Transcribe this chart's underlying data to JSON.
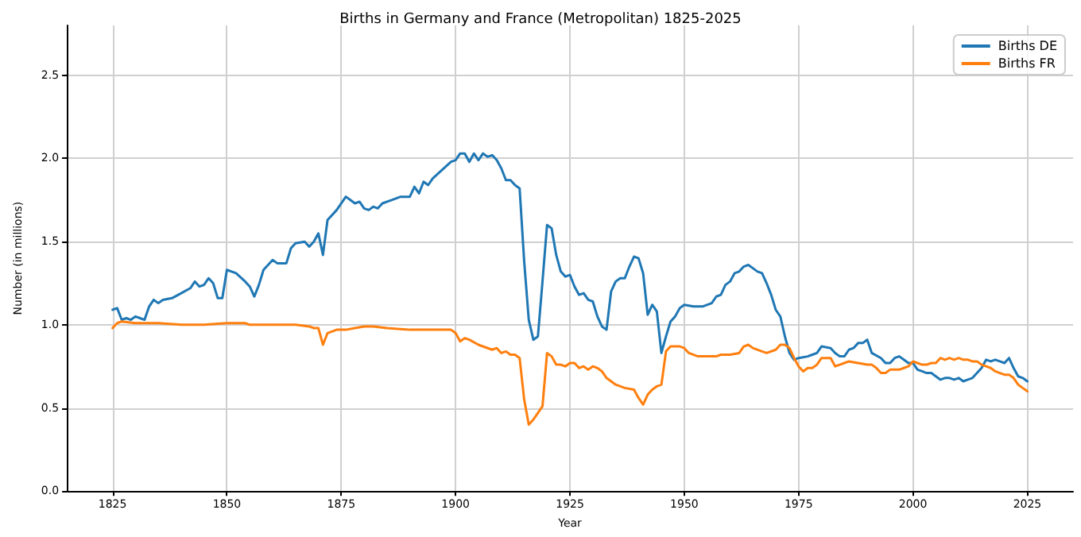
{
  "chart_data": {
    "type": "line",
    "title": "Births in Germany and France (Metropolitan) 1825-2025",
    "xlabel": "Year",
    "ylabel": "Number (in millions)",
    "xlim": [
      1815,
      2035
    ],
    "xticks": [
      1825,
      1850,
      1875,
      1900,
      1925,
      1950,
      1975,
      2000,
      2025
    ],
    "ylim": [
      0,
      2.8
    ],
    "yticks": [
      {
        "value": 0,
        "label": "0.0"
      },
      0.5,
      {
        "value": 1,
        "label": "1.0"
      },
      1.5,
      {
        "value": 2,
        "label": "2.0"
      },
      2.5
    ],
    "grid": true,
    "legend": "top right",
    "marker": "none",
    "line_style": "solid",
    "series": [
      {
        "name": "Births DE",
        "color": "#1f77b4",
        "x": [
          1825,
          1826,
          1827,
          1828,
          1829,
          1830,
          1831,
          1832,
          1833,
          1834,
          1835,
          1836,
          1838,
          1840,
          1842,
          1843,
          1844,
          1845,
          1846,
          1847,
          1848,
          1849,
          1850,
          1852,
          1854,
          1855,
          1856,
          1857,
          1858,
          1860,
          1861,
          1863,
          1864,
          1865,
          1867,
          1868,
          1869,
          1870,
          1871,
          1872,
          1874,
          1876,
          1877,
          1878,
          1879,
          1880,
          1881,
          1882,
          1883,
          1884,
          1886,
          1888,
          1890,
          1891,
          1892,
          1893,
          1894,
          1895,
          1897,
          1899,
          1900,
          1901,
          1902,
          1903,
          1904,
          1905,
          1906,
          1907,
          1908,
          1909,
          1910,
          1911,
          1912,
          1913,
          1914,
          1915,
          1916,
          1917,
          1918,
          1919,
          1920,
          1921,
          1922,
          1923,
          1924,
          1925,
          1926,
          1927,
          1928,
          1929,
          1930,
          1931,
          1932,
          1933,
          1934,
          1935,
          1936,
          1937,
          1938,
          1939,
          1940,
          1941,
          1942,
          1943,
          1944,
          1945,
          1946,
          1947,
          1948,
          1949,
          1950,
          1952,
          1954,
          1956,
          1957,
          1958,
          1959,
          1960,
          1961,
          1962,
          1963,
          1964,
          1965,
          1966,
          1967,
          1968,
          1969,
          1970,
          1971,
          1972,
          1973,
          1974,
          1975,
          1977,
          1978,
          1979,
          1980,
          1982,
          1983,
          1984,
          1985,
          1986,
          1987,
          1988,
          1989,
          1990,
          1991,
          1993,
          1994,
          1995,
          1996,
          1997,
          1998,
          1999,
          2000,
          2001,
          2002,
          2003,
          2004,
          2005,
          2006,
          2007,
          2008,
          2009,
          2010,
          2011,
          2012,
          2013,
          2014,
          2015,
          2016,
          2017,
          2018,
          2019,
          2020,
          2021,
          2022,
          2023,
          2024,
          2025
        ],
        "values": [
          1.09,
          1.1,
          1.03,
          1.04,
          1.03,
          1.05,
          1.04,
          1.03,
          1.11,
          1.15,
          1.13,
          1.15,
          1.16,
          1.19,
          1.22,
          1.26,
          1.23,
          1.24,
          1.28,
          1.25,
          1.16,
          1.16,
          1.33,
          1.31,
          1.26,
          1.23,
          1.17,
          1.24,
          1.33,
          1.39,
          1.37,
          1.37,
          1.46,
          1.49,
          1.5,
          1.47,
          1.5,
          1.55,
          1.42,
          1.63,
          1.69,
          1.77,
          1.75,
          1.73,
          1.74,
          1.7,
          1.69,
          1.71,
          1.7,
          1.73,
          1.75,
          1.77,
          1.77,
          1.83,
          1.79,
          1.86,
          1.84,
          1.88,
          1.93,
          1.98,
          1.99,
          2.03,
          2.03,
          1.98,
          2.03,
          1.99,
          2.03,
          2.01,
          2.02,
          1.99,
          1.94,
          1.87,
          1.87,
          1.84,
          1.82,
          1.38,
          1.03,
          0.91,
          0.93,
          1.26,
          1.6,
          1.58,
          1.42,
          1.32,
          1.29,
          1.3,
          1.23,
          1.18,
          1.19,
          1.15,
          1.14,
          1.05,
          0.99,
          0.97,
          1.2,
          1.26,
          1.28,
          1.28,
          1.35,
          1.41,
          1.4,
          1.31,
          1.06,
          1.12,
          1.08,
          0.83,
          0.93,
          1.02,
          1.05,
          1.1,
          1.12,
          1.11,
          1.11,
          1.13,
          1.17,
          1.18,
          1.24,
          1.26,
          1.31,
          1.32,
          1.35,
          1.36,
          1.34,
          1.32,
          1.31,
          1.25,
          1.18,
          1.09,
          1.05,
          0.93,
          0.83,
          0.79,
          0.8,
          0.81,
          0.82,
          0.83,
          0.87,
          0.86,
          0.83,
          0.81,
          0.81,
          0.85,
          0.86,
          0.89,
          0.89,
          0.91,
          0.83,
          0.8,
          0.77,
          0.77,
          0.8,
          0.81,
          0.79,
          0.77,
          0.77,
          0.73,
          0.72,
          0.71,
          0.71,
          0.69,
          0.67,
          0.68,
          0.68,
          0.67,
          0.68,
          0.66,
          0.67,
          0.68,
          0.71,
          0.74,
          0.79,
          0.78,
          0.79,
          0.78,
          0.77,
          0.8,
          0.74,
          0.69,
          0.68,
          0.66
        ]
      },
      {
        "name": "Births FR",
        "color": "#ff7f0e",
        "x": [
          1825,
          1826,
          1827,
          1830,
          1835,
          1840,
          1845,
          1850,
          1854,
          1855,
          1857,
          1860,
          1865,
          1868,
          1869,
          1870,
          1871,
          1872,
          1874,
          1876,
          1878,
          1880,
          1882,
          1885,
          1890,
          1895,
          1899,
          1900,
          1901,
          1902,
          1903,
          1905,
          1908,
          1909,
          1910,
          1911,
          1912,
          1913,
          1914,
          1915,
          1916,
          1917,
          1918,
          1919,
          1920,
          1921,
          1922,
          1923,
          1924,
          1925,
          1926,
          1927,
          1928,
          1929,
          1930,
          1931,
          1932,
          1933,
          1935,
          1937,
          1939,
          1940,
          1941,
          1942,
          1943,
          1944,
          1945,
          1946,
          1947,
          1948,
          1949,
          1950,
          1951,
          1953,
          1955,
          1957,
          1958,
          1960,
          1962,
          1963,
          1964,
          1965,
          1967,
          1968,
          1970,
          1971,
          1972,
          1973,
          1974,
          1975,
          1976,
          1977,
          1978,
          1979,
          1980,
          1981,
          1982,
          1983,
          1984,
          1985,
          1986,
          1988,
          1990,
          1991,
          1992,
          1993,
          1994,
          1995,
          1996,
          1997,
          1998,
          1999,
          2000,
          2001,
          2002,
          2003,
          2004,
          2005,
          2006,
          2007,
          2008,
          2009,
          2010,
          2011,
          2012,
          2013,
          2014,
          2015,
          2016,
          2017,
          2018,
          2019,
          2020,
          2021,
          2022,
          2023,
          2024,
          2025
        ],
        "values": [
          0.98,
          1.01,
          1.02,
          1.01,
          1.01,
          1.0,
          1.0,
          1.01,
          1.01,
          1.0,
          1.0,
          1.0,
          1.0,
          0.99,
          0.98,
          0.98,
          0.88,
          0.95,
          0.97,
          0.97,
          0.98,
          0.99,
          0.99,
          0.98,
          0.97,
          0.97,
          0.97,
          0.95,
          0.9,
          0.92,
          0.91,
          0.88,
          0.85,
          0.86,
          0.83,
          0.84,
          0.82,
          0.82,
          0.8,
          0.55,
          0.4,
          0.43,
          0.47,
          0.51,
          0.83,
          0.81,
          0.76,
          0.76,
          0.75,
          0.77,
          0.77,
          0.74,
          0.75,
          0.73,
          0.75,
          0.74,
          0.72,
          0.68,
          0.64,
          0.62,
          0.61,
          0.56,
          0.52,
          0.58,
          0.61,
          0.63,
          0.64,
          0.84,
          0.87,
          0.87,
          0.87,
          0.86,
          0.83,
          0.81,
          0.81,
          0.81,
          0.82,
          0.82,
          0.83,
          0.87,
          0.88,
          0.86,
          0.84,
          0.83,
          0.85,
          0.88,
          0.88,
          0.86,
          0.8,
          0.75,
          0.72,
          0.74,
          0.74,
          0.76,
          0.8,
          0.8,
          0.8,
          0.75,
          0.76,
          0.77,
          0.78,
          0.77,
          0.76,
          0.76,
          0.74,
          0.71,
          0.71,
          0.73,
          0.73,
          0.73,
          0.74,
          0.75,
          0.78,
          0.77,
          0.76,
          0.76,
          0.77,
          0.77,
          0.8,
          0.79,
          0.8,
          0.79,
          0.8,
          0.79,
          0.79,
          0.78,
          0.78,
          0.76,
          0.75,
          0.74,
          0.72,
          0.71,
          0.7,
          0.7,
          0.68,
          0.64,
          0.62,
          0.6
        ]
      }
    ]
  }
}
